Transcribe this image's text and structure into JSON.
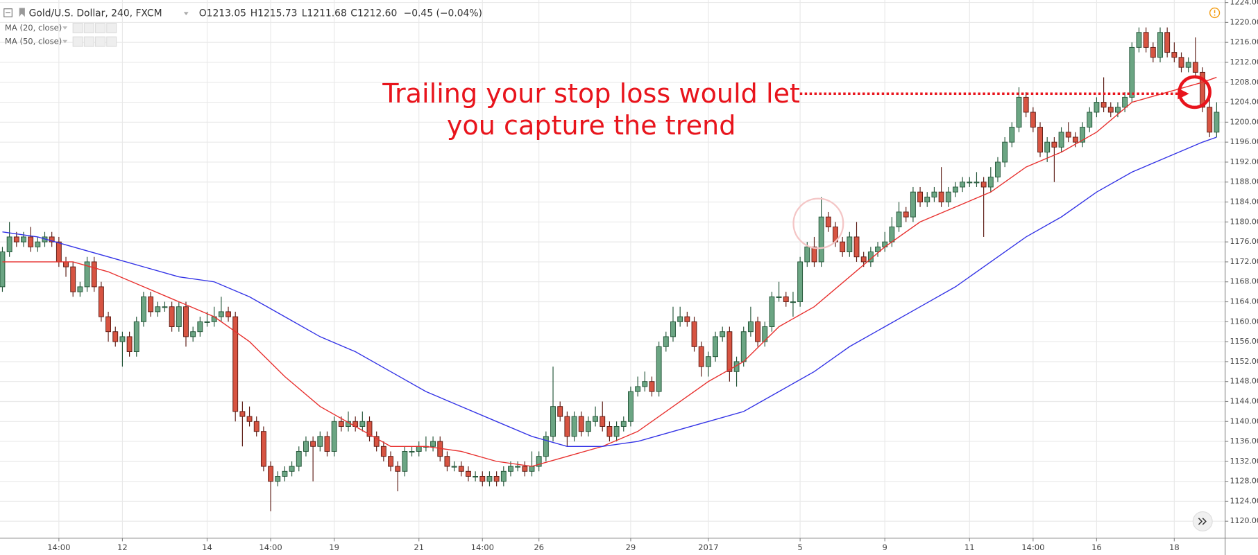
{
  "chart_data": {
    "type": "candlestick",
    "title": "Gold/U.S. Dollar, 240, FXCM",
    "ohlc_labels": [
      "O1213.05",
      "H1215.73",
      "L1211.68",
      "C1212.60"
    ],
    "change": "−0.45 (−0.04%)",
    "annotation": [
      "Trailing your stop loss would let",
      "you capture the trend"
    ],
    "up_color": "#6ba583",
    "down_color": "#d75442",
    "grid": true,
    "xlim": [
      -0.34,
      173.2
    ],
    "ylim": [
      1116.6,
      1224.5
    ],
    "xticks": [
      {
        "value": 8,
        "label": "14:00"
      },
      {
        "value": 17,
        "label": "12"
      },
      {
        "value": 29,
        "label": "14"
      },
      {
        "value": 38,
        "label": "14:00"
      },
      {
        "value": 47,
        "label": "19"
      },
      {
        "value": 59,
        "label": "21"
      },
      {
        "value": 68,
        "label": "14:00"
      },
      {
        "value": 76,
        "label": "26"
      },
      {
        "value": 89,
        "label": "29"
      },
      {
        "value": 100,
        "label": "2017"
      },
      {
        "value": 113,
        "label": "5"
      },
      {
        "value": 125,
        "label": "9"
      },
      {
        "value": 137,
        "label": "11"
      },
      {
        "value": 146,
        "label": "14:00"
      },
      {
        "value": 155,
        "label": "16"
      },
      {
        "value": 166,
        "label": "18"
      }
    ],
    "yticks": [
      {
        "value": 1120,
        "label": "1120.00"
      },
      {
        "value": 1124,
        "label": "1124.00"
      },
      {
        "value": 1128,
        "label": "1128.00"
      },
      {
        "value": 1132,
        "label": "1132.00"
      },
      {
        "value": 1136,
        "label": "1136.00"
      },
      {
        "value": 1140,
        "label": "1140.00"
      },
      {
        "value": 1144,
        "label": "1144.00"
      },
      {
        "value": 1148,
        "label": "1148.00"
      },
      {
        "value": 1152,
        "label": "1152.00"
      },
      {
        "value": 1156,
        "label": "1156.00"
      },
      {
        "value": 1160,
        "label": "1160.00"
      },
      {
        "value": 1164,
        "label": "1164.00"
      },
      {
        "value": 1168,
        "label": "1168.00"
      },
      {
        "value": 1172,
        "label": "1172.00"
      },
      {
        "value": 1176,
        "label": "1176.00"
      },
      {
        "value": 1180,
        "label": "1180.00"
      },
      {
        "value": 1184,
        "label": "1184.00"
      },
      {
        "value": 1188,
        "label": "1188.00"
      },
      {
        "value": 1192,
        "label": "1192.00"
      },
      {
        "value": 1196,
        "label": "1196.00"
      },
      {
        "value": 1200,
        "label": "1200.00"
      },
      {
        "value": 1204,
        "label": "1204.00"
      },
      {
        "value": 1208,
        "label": "1208.00"
      },
      {
        "value": 1212,
        "label": "1212.00"
      },
      {
        "value": 1216,
        "label": "1216.00"
      },
      {
        "value": 1220,
        "label": "1220.00"
      },
      {
        "value": 1224,
        "label": "1224.00"
      }
    ],
    "open": [
      1167,
      1174,
      1177,
      1176,
      1177,
      1175,
      1176,
      1177,
      1176,
      1172,
      1171,
      1166,
      1167,
      1172,
      1167,
      1161,
      1158,
      1156,
      1157,
      1154,
      1160,
      1165,
      1162,
      1163,
      1163,
      1159,
      1163,
      1157,
      1158,
      1160,
      1160,
      1161,
      1162,
      1161,
      1142,
      1141,
      1140,
      1138,
      1131,
      1128,
      1129,
      1130,
      1131,
      1134,
      1136,
      1135,
      1137,
      1134,
      1140,
      1139,
      1140,
      1139,
      1140,
      1137,
      1135,
      1133,
      1131,
      1130,
      1134,
      1134,
      1135,
      1135,
      1136,
      1133,
      1131,
      1131,
      1130,
      1129,
      1129,
      1128,
      1129,
      1128,
      1130,
      1131,
      1131,
      1130,
      1131,
      1133,
      1137,
      1143,
      1141,
      1137,
      1141,
      1138,
      1140,
      1141,
      1139,
      1137,
      1139,
      1140,
      1146,
      1147,
      1148,
      1146,
      1155,
      1157,
      1160,
      1161,
      1160,
      1155,
      1151,
      1153,
      1157,
      1158,
      1150,
      1152,
      1158,
      1160,
      1156,
      1159,
      1165,
      1165,
      1164,
      1164,
      1172,
      1175,
      1172,
      1181,
      1179,
      1176,
      1174,
      1177,
      1173,
      1172,
      1174,
      1175,
      1176,
      1179,
      1182,
      1181,
      1186,
      1184,
      1185,
      1186,
      1184,
      1186,
      1187,
      1188,
      1188,
      1188,
      1187,
      1189,
      1192,
      1196,
      1199,
      1205,
      1202,
      1199,
      1194,
      1196,
      1195,
      1198,
      1197,
      1196,
      1199,
      1202,
      1204,
      1203,
      1202,
      1203,
      1205,
      1215,
      1218,
      1215,
      1213,
      1218,
      1214,
      1213,
      1211,
      1212,
      1210,
      1203,
      1198
    ],
    "high": [
      1175,
      1180,
      1178,
      1178,
      1179,
      1177,
      1178,
      1178,
      1177,
      1173,
      1172,
      1168,
      1173,
      1173,
      1168,
      1162,
      1159,
      1158,
      1158,
      1161,
      1166,
      1166,
      1164,
      1164,
      1164,
      1164,
      1164,
      1159,
      1161,
      1162,
      1163,
      1165,
      1163,
      1162,
      1144,
      1143,
      1141,
      1139,
      1132,
      1130,
      1131,
      1132,
      1135,
      1137,
      1137,
      1138,
      1138,
      1141,
      1141,
      1142,
      1141,
      1142,
      1141,
      1138,
      1136,
      1134,
      1132,
      1135,
      1135,
      1136,
      1137,
      1137,
      1137,
      1134,
      1132,
      1132,
      1131,
      1130,
      1130,
      1130,
      1130,
      1131,
      1132,
      1132,
      1132,
      1134,
      1134,
      1138,
      1151,
      1144,
      1142,
      1142,
      1142,
      1141,
      1143,
      1144,
      1140,
      1140,
      1141,
      1147,
      1149,
      1150,
      1149,
      1156,
      1158,
      1163,
      1163,
      1162,
      1161,
      1156,
      1154,
      1158,
      1159,
      1159,
      1153,
      1159,
      1163,
      1161,
      1160,
      1166,
      1168,
      1166,
      1166,
      1173,
      1176,
      1177,
      1185,
      1182,
      1180,
      1177,
      1178,
      1180,
      1174,
      1175,
      1176,
      1178,
      1181,
      1184,
      1183,
      1187,
      1187,
      1186,
      1187,
      1191,
      1187,
      1188,
      1189,
      1189,
      1190,
      1189,
      1191,
      1193,
      1197,
      1200,
      1207,
      1206,
      1203,
      1200,
      1197,
      1197,
      1199,
      1200,
      1198,
      1200,
      1203,
      1205,
      1209,
      1204,
      1204,
      1206,
      1216,
      1219,
      1219,
      1216,
      1219,
      1219,
      1216,
      1214,
      1213,
      1217,
      1211,
      1205,
      1204
    ],
    "low": [
      1166,
      1173,
      1175,
      1175,
      1174,
      1174,
      1175,
      1175,
      1171,
      1169,
      1165,
      1165,
      1166,
      1166,
      1160,
      1156,
      1155,
      1151,
      1153,
      1153,
      1159,
      1161,
      1161,
      1162,
      1158,
      1158,
      1155,
      1156,
      1157,
      1159,
      1159,
      1160,
      1160,
      1140,
      1135,
      1139,
      1137,
      1130,
      1122,
      1127,
      1128,
      1129,
      1130,
      1133,
      1128,
      1134,
      1133,
      1133,
      1138,
      1138,
      1138,
      1138,
      1136,
      1134,
      1132,
      1130,
      1126,
      1129,
      1133,
      1133,
      1134,
      1134,
      1132,
      1130,
      1130,
      1129,
      1128,
      1128,
      1127,
      1127,
      1127,
      1127,
      1129,
      1130,
      1129,
      1129,
      1130,
      1132,
      1136,
      1140,
      1135,
      1136,
      1137,
      1137,
      1139,
      1138,
      1136,
      1136,
      1138,
      1139,
      1145,
      1146,
      1145,
      1145,
      1154,
      1156,
      1159,
      1159,
      1154,
      1149,
      1149,
      1152,
      1156,
      1148,
      1147,
      1151,
      1157,
      1155,
      1155,
      1158,
      1164,
      1163,
      1161,
      1163,
      1171,
      1171,
      1171,
      1178,
      1175,
      1173,
      1173,
      1172,
      1171,
      1171,
      1173,
      1174,
      1175,
      1178,
      1180,
      1180,
      1183,
      1183,
      1184,
      1183,
      1183,
      1185,
      1186,
      1187,
      1187,
      1177,
      1186,
      1188,
      1191,
      1195,
      1198,
      1201,
      1198,
      1193,
      1192,
      1188,
      1194,
      1196,
      1195,
      1195,
      1198,
      1201,
      1202,
      1201,
      1201,
      1202,
      1204,
      1214,
      1214,
      1212,
      1212,
      1213,
      1212,
      1210,
      1210,
      1209,
      1202,
      1197,
      1197
    ],
    "close": [
      1174,
      1177,
      1176,
      1177,
      1175,
      1176,
      1177,
      1176,
      1172,
      1171,
      1166,
      1167,
      1172,
      1167,
      1161,
      1158,
      1156,
      1157,
      1154,
      1160,
      1165,
      1162,
      1163,
      1163,
      1159,
      1163,
      1157,
      1158,
      1160,
      1160,
      1161,
      1162,
      1161,
      1142,
      1141,
      1140,
      1138,
      1131,
      1128,
      1129,
      1130,
      1131,
      1134,
      1136,
      1135,
      1137,
      1134,
      1140,
      1139,
      1140,
      1139,
      1140,
      1137,
      1135,
      1133,
      1131,
      1130,
      1134,
      1134,
      1135,
      1135,
      1136,
      1133,
      1131,
      1131,
      1130,
      1129,
      1129,
      1128,
      1129,
      1128,
      1130,
      1131,
      1131,
      1130,
      1131,
      1133,
      1137,
      1143,
      1141,
      1137,
      1141,
      1138,
      1140,
      1141,
      1139,
      1137,
      1139,
      1140,
      1146,
      1147,
      1148,
      1146,
      1155,
      1157,
      1160,
      1161,
      1160,
      1155,
      1151,
      1153,
      1157,
      1158,
      1150,
      1152,
      1158,
      1160,
      1156,
      1159,
      1165,
      1165,
      1164,
      1164,
      1172,
      1175,
      1172,
      1181,
      1179,
      1176,
      1174,
      1177,
      1173,
      1172,
      1174,
      1175,
      1176,
      1179,
      1182,
      1181,
      1186,
      1184,
      1185,
      1186,
      1184,
      1186,
      1187,
      1188,
      1188,
      1188,
      1187,
      1189,
      1192,
      1196,
      1199,
      1205,
      1202,
      1199,
      1194,
      1196,
      1195,
      1198,
      1197,
      1196,
      1199,
      1202,
      1204,
      1203,
      1202,
      1203,
      1205,
      1215,
      1218,
      1215,
      1213,
      1218,
      1214,
      1213,
      1211,
      1212,
      1210,
      1203,
      1198,
      1202
    ],
    "series": [
      {
        "name": "MA (20, close)",
        "color": "#e8312f",
        "x": [
          0,
          5,
          10,
          15,
          20,
          25,
          30,
          35,
          40,
          45,
          50,
          55,
          60,
          65,
          70,
          75,
          80,
          85,
          90,
          95,
          100,
          105,
          110,
          115,
          120,
          125,
          130,
          135,
          140,
          145,
          150,
          155,
          160,
          165,
          170,
          172
        ],
        "values": [
          1172,
          1172,
          1172,
          1170,
          1167,
          1164,
          1161,
          1156,
          1149,
          1143,
          1139,
          1135,
          1135,
          1134,
          1132,
          1131,
          1133,
          1135,
          1138,
          1143,
          1148,
          1152,
          1159,
          1163,
          1169,
          1175,
          1180,
          1183,
          1186,
          1191,
          1194,
          1198,
          1204,
          1206,
          1208,
          1209
        ]
      },
      {
        "name": "MA (50, close)",
        "color": "#3333e6",
        "x": [
          0,
          5,
          10,
          15,
          20,
          25,
          30,
          35,
          40,
          45,
          50,
          55,
          60,
          65,
          70,
          75,
          80,
          85,
          90,
          95,
          100,
          105,
          110,
          115,
          120,
          125,
          130,
          135,
          140,
          145,
          150,
          155,
          160,
          165,
          170,
          172
        ],
        "values": [
          1178,
          1177,
          1175,
          1173,
          1171,
          1169,
          1168,
          1165,
          1161,
          1157,
          1154,
          1150,
          1146,
          1143,
          1140,
          1137,
          1135,
          1135,
          1136,
          1138,
          1140,
          1142,
          1146,
          1150,
          1155,
          1159,
          1163,
          1167,
          1172,
          1177,
          1181,
          1186,
          1190,
          1193,
          1196,
          1197
        ]
      }
    ]
  }
}
